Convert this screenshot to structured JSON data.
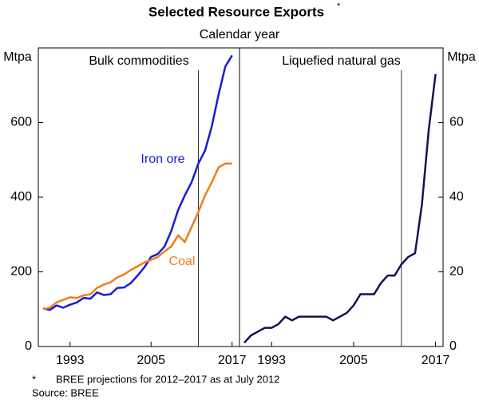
{
  "title": "Selected Resource Exports",
  "title_marker": "*",
  "subtitle": "Calendar year",
  "footnote_marker": "*",
  "footnote": "BREE projections for 2012–2017 as at July 2012",
  "source": "Source: BREE",
  "chart_data": [
    {
      "type": "line",
      "title": "Bulk commodities",
      "y_label": "Mtpa",
      "y_axis_side": "left",
      "x": [
        1989,
        1990,
        1991,
        1992,
        1993,
        1994,
        1995,
        1996,
        1997,
        1998,
        1999,
        2000,
        2001,
        2002,
        2003,
        2004,
        2005,
        2006,
        2007,
        2008,
        2009,
        2010,
        2011,
        2012,
        2013,
        2014,
        2015,
        2016,
        2017
      ],
      "series": [
        {
          "name": "Iron ore",
          "color": "#1a1adb",
          "values": [
            102,
            98,
            110,
            104,
            112,
            118,
            130,
            128,
            145,
            138,
            140,
            157,
            158,
            170,
            190,
            212,
            240,
            248,
            268,
            310,
            365,
            405,
            440,
            490,
            525,
            590,
            675,
            750,
            780
          ]
        },
        {
          "name": "Coal",
          "color": "#f07d1a",
          "values": [
            100,
            104,
            118,
            125,
            132,
            130,
            137,
            140,
            157,
            166,
            172,
            185,
            193,
            205,
            215,
            225,
            232,
            240,
            255,
            268,
            298,
            280,
            320,
            360,
            405,
            440,
            480,
            490,
            490
          ]
        }
      ],
      "xlim": [
        1988.3,
        2018.1
      ],
      "xticks": [
        1993,
        2005,
        2017
      ],
      "ylim": [
        0,
        800
      ],
      "yticks": [
        0,
        200,
        400,
        600
      ],
      "projection_line": 2012,
      "grid": false
    },
    {
      "type": "line",
      "title": "Liquefied natural gas",
      "y_label": "Mtpa",
      "y_axis_side": "right",
      "x": [
        1989,
        1990,
        1991,
        1992,
        1993,
        1994,
        1995,
        1996,
        1997,
        1998,
        1999,
        2000,
        2001,
        2002,
        2003,
        2004,
        2005,
        2006,
        2007,
        2008,
        2009,
        2010,
        2011,
        2012,
        2013,
        2014,
        2015,
        2016,
        2017
      ],
      "series": [
        {
          "name": "LNG",
          "color": "#141450",
          "values": [
            1,
            3,
            4,
            5,
            5,
            6,
            8,
            7,
            8,
            8,
            8,
            8,
            8,
            7,
            8,
            9,
            11,
            14,
            14,
            14,
            17,
            19,
            19,
            22,
            24,
            25,
            38,
            58,
            73
          ]
        }
      ],
      "show_legend": false,
      "xlim": [
        1988.3,
        2018.1
      ],
      "xticks": [
        1993,
        2005,
        2017
      ],
      "ylim": [
        0,
        80
      ],
      "yticks": [
        0,
        20,
        40,
        60
      ],
      "projection_line": 2012,
      "grid": false
    }
  ]
}
